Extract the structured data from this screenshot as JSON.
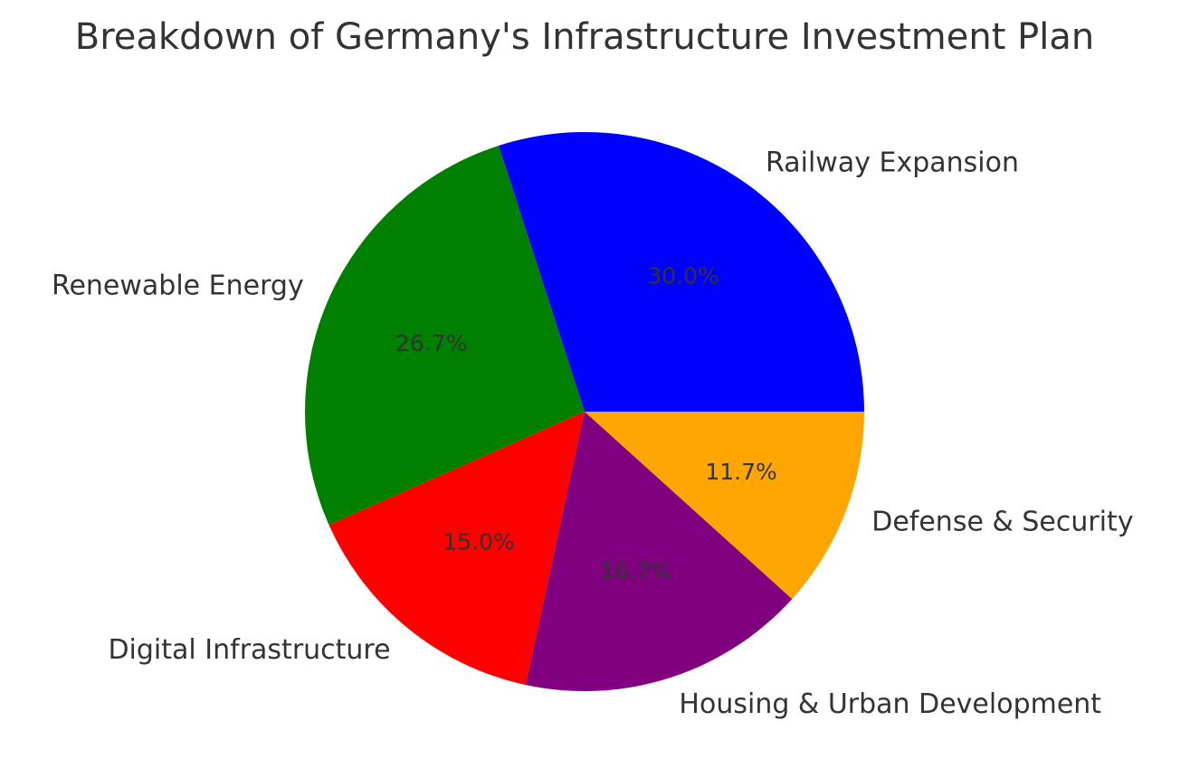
{
  "chart_data": {
    "type": "pie",
    "title": "Breakdown of Germany's Infrastructure Investment Plan",
    "slices": [
      {
        "label": "Railway Expansion",
        "value": 30.0,
        "pct_label": "30.0%",
        "color": "#0000ff"
      },
      {
        "label": "Renewable Energy",
        "value": 26.7,
        "pct_label": "26.7%",
        "color": "#008000"
      },
      {
        "label": "Digital Infrastructure",
        "value": 15.0,
        "pct_label": "15.0%",
        "color": "#ff0000"
      },
      {
        "label": "Housing & Urban Development",
        "value": 16.7,
        "pct_label": "16.7%",
        "color": "#800080"
      },
      {
        "label": "Defense & Security",
        "value": 11.7,
        "pct_label": "11.7%",
        "color": "#ffa500"
      }
    ],
    "start_angle_deg": 0,
    "direction": "counterclockwise",
    "legend": "none"
  }
}
